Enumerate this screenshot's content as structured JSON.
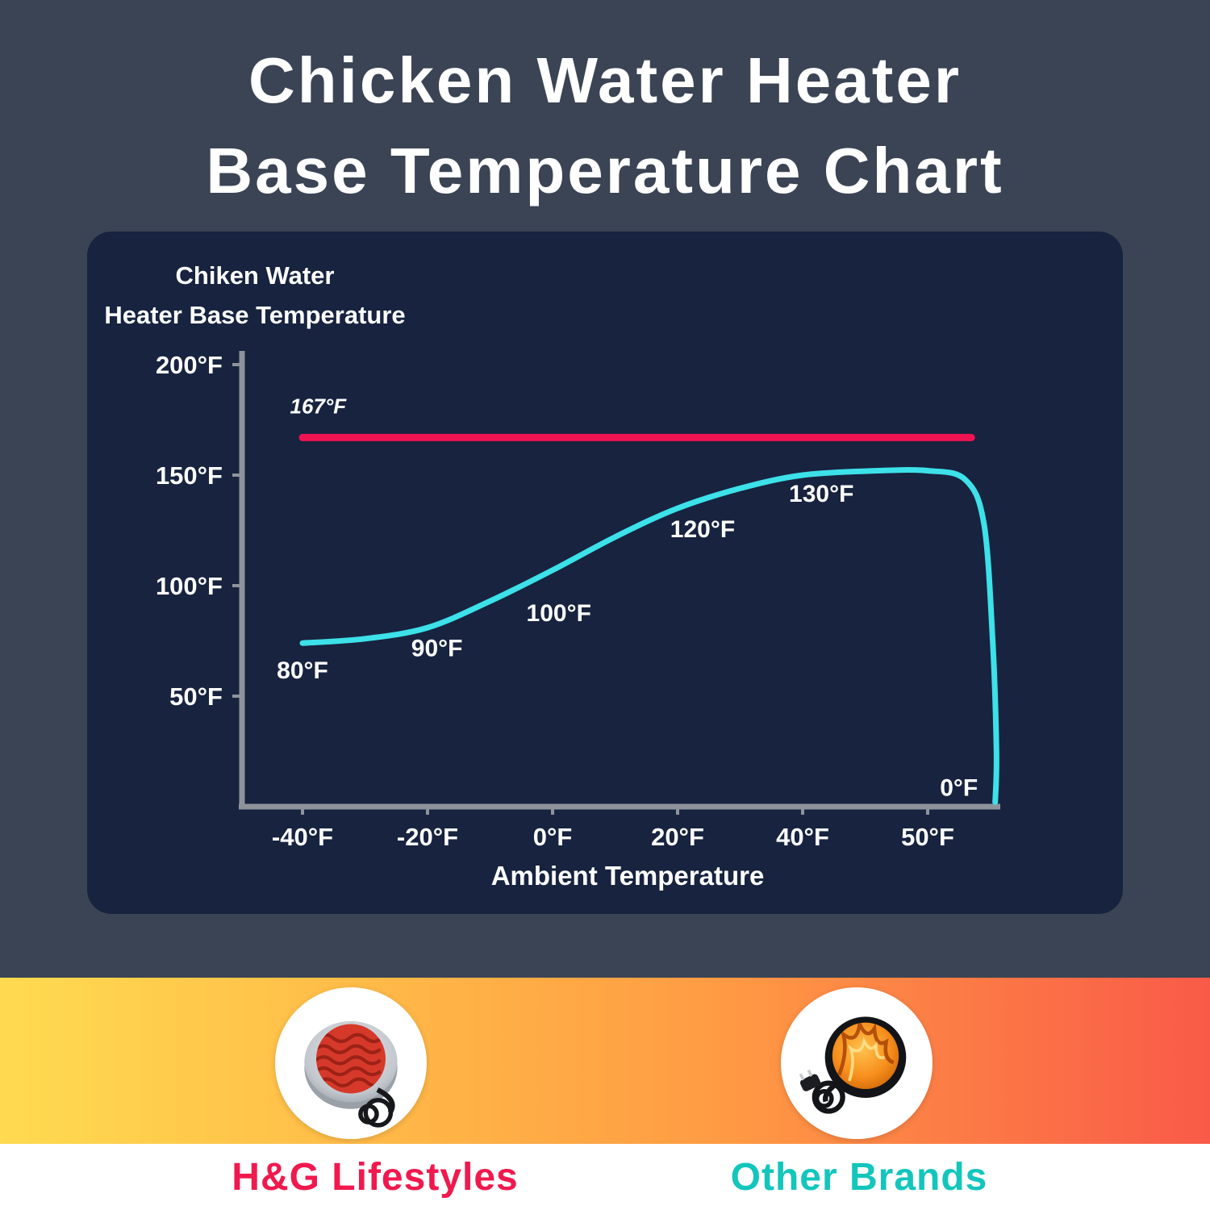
{
  "page": {
    "title_line1": "Chicken Water Heater",
    "title_line2": "Base Temperature Chart"
  },
  "chart_data": {
    "type": "line",
    "title_line1": "Chiken Water",
    "title_line2": "Heater Base Temperature",
    "xlabel": "Ambient Temperature",
    "x_ticks": [
      "-40°F",
      "-20°F",
      "0°F",
      "20°F",
      "40°F",
      "50°F"
    ],
    "y_ticks": [
      {
        "label": "200°F",
        "value": 200
      },
      {
        "label": "150°F",
        "value": 150
      },
      {
        "label": "100°F",
        "value": 100
      },
      {
        "label": "50°F",
        "value": 50
      }
    ],
    "ylim": [
      0,
      200
    ],
    "axis_color": "#8e939b",
    "text_color": "#ffffff",
    "reference_line": {
      "label": "167°F",
      "value": 167,
      "color": "#ef1352",
      "x_start": -40,
      "x_end": 53.5,
      "label_x": -37.5,
      "label_y": 178
    },
    "series": [
      {
        "name": "Chicken water heater base temperature",
        "color": "#3ce1e9",
        "points": [
          [
            -40,
            74
          ],
          [
            -30,
            76
          ],
          [
            -20,
            81
          ],
          [
            -10,
            93
          ],
          [
            0,
            107
          ],
          [
            10,
            122
          ],
          [
            20,
            135
          ],
          [
            30,
            144
          ],
          [
            40,
            150
          ],
          [
            46,
            152
          ],
          [
            50,
            152
          ],
          [
            53,
            148
          ],
          [
            54.5,
            128
          ],
          [
            55.2,
            75
          ],
          [
            55.5,
            25
          ],
          [
            55.4,
            2
          ]
        ]
      }
    ],
    "annotations": [
      {
        "text": "80°F",
        "x": -40,
        "y": 62
      },
      {
        "text": "90°F",
        "x": -18.5,
        "y": 72
      },
      {
        "text": "100°F",
        "x": 1,
        "y": 88
      },
      {
        "text": "120°F",
        "x": 24,
        "y": 126
      },
      {
        "text": "130°F",
        "x": 41.5,
        "y": 142
      },
      {
        "text": "0°F",
        "x": 52.5,
        "y": 9
      }
    ]
  },
  "legend": {
    "left": {
      "label": "H&G Lifestyles",
      "color": "#f0194e"
    },
    "right": {
      "label": "Other Brands",
      "color": "#13c6bc"
    }
  }
}
